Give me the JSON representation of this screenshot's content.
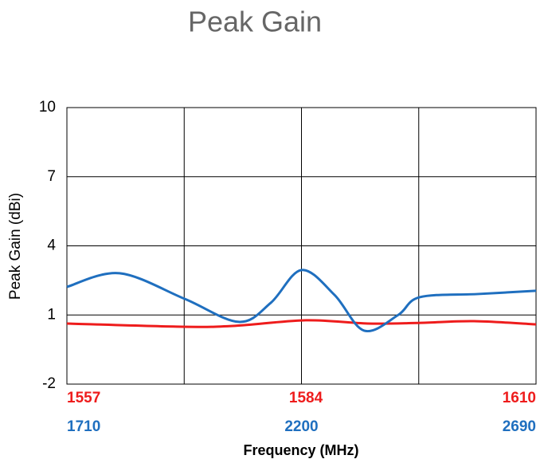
{
  "chart_data": {
    "type": "line",
    "title": "Peak Gain",
    "x_label": "Frequency (MHz)",
    "y_label": "Peak Gain (dBi)",
    "xlim": [
      1557,
      1610
    ],
    "xticks": [
      1557,
      1584,
      1610
    ],
    "x2lim": [
      1710,
      2690
    ],
    "x2ticks": [
      1710,
      2200,
      2690
    ],
    "ylim": [
      -2,
      10
    ],
    "yticks": [
      -2,
      1,
      4,
      7,
      10
    ],
    "grid": true,
    "series": [
      {
        "color": "#ee1c1c",
        "axis": "x",
        "x": [
          1557,
          1570,
          1576,
          1584,
          1591,
          1597,
          1603,
          1610
        ],
        "values": [
          0.63,
          0.49,
          0.53,
          0.77,
          0.63,
          0.66,
          0.73,
          0.59
        ]
      },
      {
        "color": "#1f6fbf",
        "axis": "x2",
        "x": [
          1710,
          1820,
          1956,
          2069,
          2136,
          2200,
          2269,
          2331,
          2402,
          2447,
          2569,
          2690
        ],
        "values": [
          2.22,
          2.81,
          1.7,
          0.7,
          1.53,
          2.95,
          1.87,
          0.32,
          1.0,
          1.77,
          1.91,
          2.05
        ]
      }
    ]
  }
}
